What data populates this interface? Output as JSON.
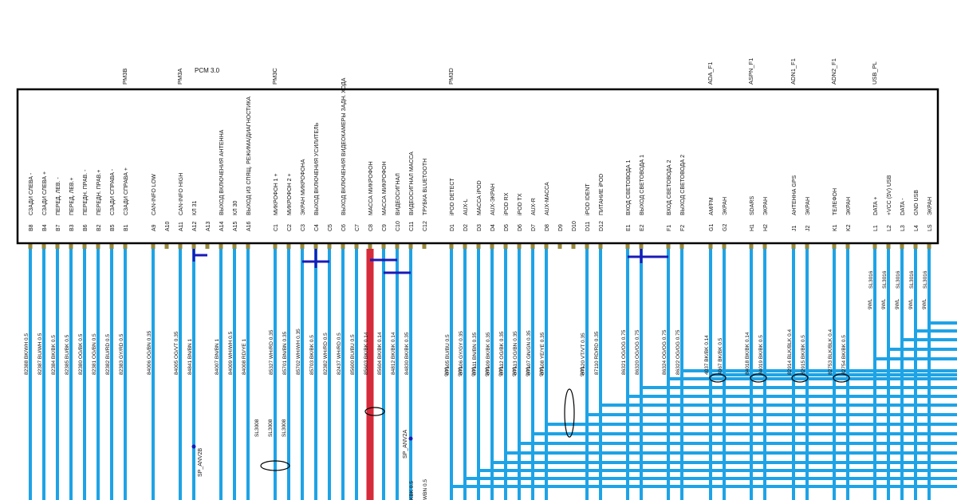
{
  "module": {
    "title": "PCM 3.0",
    "connectors": [
      {
        "name": "PM3B"
      },
      {
        "name": "PM3A"
      },
      {
        "name": "PM3C"
      },
      {
        "name": "PM3D"
      },
      {
        "name": "ADA_F1"
      },
      {
        "name": "ASPN_F1"
      },
      {
        "name": "ADN1_F1"
      },
      {
        "name": "ADN2_F1"
      },
      {
        "name": "USB_PL"
      }
    ]
  },
  "pins": [
    {
      "id": "B8",
      "label": "СЗАДИ СЛЕВА -",
      "wire": "82388 BK/WH 0.5"
    },
    {
      "id": "B4",
      "label": "СЗАДИ СЛЕВА +",
      "wire": "82387 BU/WH 0.5"
    },
    {
      "id": "B7",
      "label": "ПЕРЕД. ЛЕВ. -",
      "wire": "82384 BK/BK 0.5"
    },
    {
      "id": "B3",
      "label": "ПЕРЕД. ЛЕВ.+",
      "wire": "82385 BU/BK 0.5"
    },
    {
      "id": "B6",
      "label": "ПЕРЕДН. ПРАВ. -",
      "wire": "82380 OG/BK 0.5"
    },
    {
      "id": "B2",
      "label": "ПЕРЕДН. ПРАВ.+",
      "wire": "82381 OG/BN 0.5"
    },
    {
      "id": "B5",
      "label": "СЗАДИ СПРАВА -",
      "wire": "82382 BU/RD 0.5"
    },
    {
      "id": "B1",
      "label": "СЗАДИ СПРАВА +",
      "wire": "82383 GY/RD 0.5"
    },
    {
      "id": "A9",
      "label": "CAN-INFO LOW",
      "wire": "84006 OG/BN 0.35"
    },
    {
      "id": "A10",
      "label": "",
      "wire": ""
    },
    {
      "id": "A11",
      "label": "CAN-INFO HIGH",
      "wire": "84005 OG/VT 0.35"
    },
    {
      "id": "A12",
      "label": "КЛ 31",
      "wire": "84841 BN/BN 1"
    },
    {
      "id": "A13",
      "label": "",
      "wire": ""
    },
    {
      "id": "A14",
      "label": "ВЫХОД ВКЛЮЧЕНИЯ АНТЕННА",
      "wire": "84007 BN/BN 1"
    },
    {
      "id": "A15",
      "label": "КЛ 30",
      "wire": "84009 WH/WH 0.5"
    },
    {
      "id": "A16",
      "label": "ВЫХОД ИЗ СПЯЩ. РЕЖИМА/ДИАГНОСТИКА",
      "wire": "84008 RD/YE 1"
    },
    {
      "id": "C1",
      "label": "МИКРОФОН 1 +",
      "wire": "85327 WH/RD 0.35"
    },
    {
      "id": "C2",
      "label": "МИКРОФОН 2 +",
      "wire": "85701 BN/BN 0.35"
    },
    {
      "id": "C3",
      "label": "ЭКРАН МИКРОФОНА",
      "wire": "85702 WH/WH 0.35"
    },
    {
      "id": "C4",
      "label": "ВЫХОД ВКЛЮЧЕНИЯ УСИЛИТЕЛЬ",
      "wire": "85703 BK/BK 0.5"
    },
    {
      "id": "C5",
      "label": "",
      "wire": "82382 WH/RD 0.5"
    },
    {
      "id": "C6",
      "label": "ВЫХОД ВКЛЮЧЕНИЯ ВИДЕОКАМЕРЫ ЗАДН. ХОДА",
      "wire": "82437 WH/RD 0.5"
    },
    {
      "id": "C7",
      "label": "",
      "wire": "85600 BU/BU 0.5"
    },
    {
      "id": "C8",
      "label": "МАССА МИКРОФОН",
      "wire": "85603 BK/BK 0.14"
    },
    {
      "id": "C9",
      "label": "МАССА МИКРОФОН",
      "wire": "85604 BK/BK 0.14"
    },
    {
      "id": "C10",
      "label": "ВИДЕОСИГНАЛ",
      "wire": "84812 BK/BK 0.14"
    },
    {
      "id": "C11",
      "label": "ВИДЕОСИГНАЛ МАССА",
      "wire": "84830 BK/BK 0.35"
    },
    {
      "id": "C12",
      "label": "ТРУБКА BLUETOOTH",
      "wire": ""
    },
    {
      "id": "D1",
      "label": "iPOD DETECT",
      "wire": "87105 BU/BU 0.5"
    },
    {
      "id": "D2",
      "label": "AUX-L",
      "wire": "87106 GY/GY 0.35"
    },
    {
      "id": "D3",
      "label": "МАССА iPOD",
      "wire": "87111 BN/BN 0.35"
    },
    {
      "id": "D4",
      "label": "AUX-ЭКРАН",
      "wire": "87109 BK/BK 0.35"
    },
    {
      "id": "D5",
      "label": "iPOD RX",
      "wire": "87112 OG/BK 0.35"
    },
    {
      "id": "D6",
      "label": "iPOD TX",
      "wire": "87113 OG/BN 0.35"
    },
    {
      "id": "D7",
      "label": "AUX-R",
      "wire": "87107 GN/GN 0.35"
    },
    {
      "id": "D8",
      "label": "AUX-МАССА",
      "wire": "87108 YE/YE 0.35"
    },
    {
      "id": "D9",
      "label": "",
      "wire": ""
    },
    {
      "id": "D10",
      "label": "",
      "wire": ""
    },
    {
      "id": "D11",
      "label": "iPOD IDENT",
      "wire": "87120 VT/VT 0.35"
    },
    {
      "id": "D12",
      "label": "ПИТАНИЕ iPOD",
      "wire": "87110 RD/RD 0.35"
    },
    {
      "id": "E1",
      "label": "ВХОД СВЕТОВОДА 1",
      "wire": "86321 OG/OG 0.75"
    },
    {
      "id": "E2",
      "label": "ВЫХОД СВЕТОВОДА 1",
      "wire": "86320 OG/OG 0.75"
    },
    {
      "id": "F1",
      "label": "ВХОД СВЕТОВОДА 2",
      "wire": "86324 OG/OG 0.75"
    },
    {
      "id": "F2",
      "label": "ВЫХОД СВЕТОВОДА 2",
      "wire": "86322 OG/OG 0.75"
    },
    {
      "id": "G1",
      "label": "AM/FM",
      "wire": "4037 BK/BK 0.14"
    },
    {
      "id": "G2",
      "label": "ЭКРАН",
      "wire": "4067 BK/BK 0.5"
    },
    {
      "id": "H1",
      "label": "SDARS",
      "wire": "84018 BK/BK 0.14"
    },
    {
      "id": "H2",
      "label": "ЭКРАН",
      "wire": "84019 BK/BK 0.5"
    },
    {
      "id": "J1",
      "label": "АНТЕННА GPS",
      "wire": "82914 BLK/BLK 0.4"
    },
    {
      "id": "J2",
      "label": "ЭКРАН",
      "wire": "82915 BK/BK 0.5"
    },
    {
      "id": "K1",
      "label": "ТЕЛЕФОН",
      "wire": "82753 BLK/BLK 0.4"
    },
    {
      "id": "K2",
      "label": "ЭКРАН",
      "wire": "82754 BK/BK 0.5"
    },
    {
      "id": "L1",
      "label": "DATA +",
      "wire": "SL3016"
    },
    {
      "id": "L2",
      "label": "+VCC (5V) USB",
      "wire": "SL3016"
    },
    {
      "id": "L3",
      "label": "DATA -",
      "wire": "SL3016"
    },
    {
      "id": "L4",
      "label": "GND USB",
      "wire": "SL3016"
    },
    {
      "id": "LS",
      "label": "ЭКРАН",
      "wire": "SL3016"
    }
  ],
  "shields": {
    "d_group": [
      "9WL",
      "9WL",
      "9WL",
      "9WL",
      "9WL",
      "9WL",
      "9WL",
      "9WL",
      "9WL"
    ],
    "usb_group": [
      "9WL",
      "9WL",
      "9WL",
      "9WL",
      "9WL"
    ],
    "mic_group": [
      "SL3008",
      "SL3008",
      "SL3008"
    ]
  },
  "splices": [
    "SP_ANV2B",
    "SP_ANV2A"
  ],
  "bottom_labels": [
    "KBK 0.5",
    "WBN 0.5"
  ],
  "colors": {
    "wire": "#1ea3e6",
    "wire_dark": "#1a1ab8",
    "wire_red": "#d62b3a",
    "pin_stub": "#9a8a3a",
    "frame": "#000000"
  }
}
